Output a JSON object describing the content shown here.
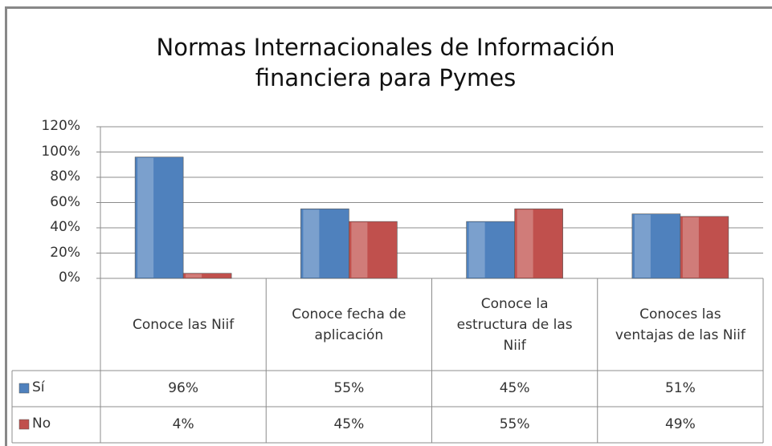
{
  "chart_data": {
    "type": "bar",
    "title": "Normas Internacionales de Información financiera para Pymes",
    "categories": [
      "Conoce las Niif",
      "Conoce fecha de aplicación",
      "Conoce la estructura de las Niif",
      "Conoces las ventajas de  las Niif"
    ],
    "series": [
      {
        "name": "Sí",
        "color": "#4f81bd",
        "values": [
          96,
          55,
          45,
          51
        ],
        "value_labels": [
          "96%",
          "55%",
          "45%",
          "51%"
        ]
      },
      {
        "name": "No",
        "color": "#c0504d",
        "values": [
          4,
          45,
          55,
          49
        ],
        "value_labels": [
          "4%",
          "45%",
          "55%",
          "49%"
        ]
      }
    ],
    "ylim": [
      0,
      120
    ],
    "yticks": [
      {
        "value": 0,
        "label": "0%"
      },
      {
        "value": 20,
        "label": "20%"
      },
      {
        "value": 40,
        "label": "40%"
      },
      {
        "value": 60,
        "label": "60%"
      },
      {
        "value": 80,
        "label": "80%"
      },
      {
        "value": 100,
        "label": "100%"
      },
      {
        "value": 120,
        "label": "120%"
      }
    ],
    "grid": true,
    "data_table": true
  }
}
